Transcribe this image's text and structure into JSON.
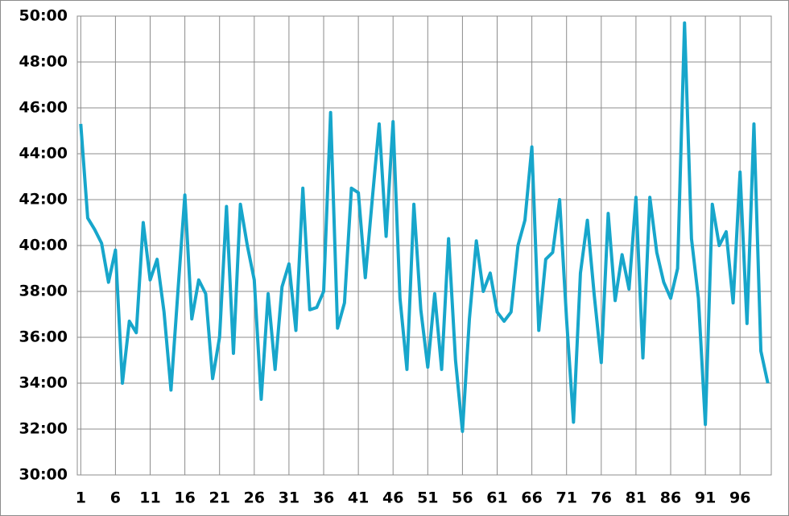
{
  "chart_data": {
    "type": "line",
    "x": [
      1,
      2,
      3,
      4,
      5,
      6,
      7,
      8,
      9,
      10,
      11,
      12,
      13,
      14,
      15,
      16,
      17,
      18,
      19,
      20,
      21,
      22,
      23,
      24,
      25,
      26,
      27,
      28,
      29,
      30,
      31,
      32,
      33,
      34,
      35,
      36,
      37,
      38,
      39,
      40,
      41,
      42,
      43,
      44,
      45,
      46,
      47,
      48,
      49,
      50,
      51,
      52,
      53,
      54,
      55,
      56,
      57,
      58,
      59,
      60,
      61,
      62,
      63,
      64,
      65,
      66,
      67,
      68,
      69,
      70,
      71,
      72,
      73,
      74,
      75,
      76,
      77,
      78,
      79,
      80,
      81,
      82,
      83,
      84,
      85,
      86,
      87,
      88,
      89,
      90,
      91,
      92,
      93,
      94,
      95,
      96,
      97,
      98,
      99,
      100
    ],
    "series": [
      {
        "color": "#17a6cb",
        "values": [
          45.3,
          41.2,
          40.7,
          40.1,
          38.4,
          39.8,
          34.0,
          36.7,
          36.2,
          41.0,
          38.5,
          39.4,
          37.1,
          33.7,
          38.0,
          42.2,
          36.8,
          38.5,
          37.9,
          34.2,
          36.0,
          41.7,
          35.3,
          41.8,
          40.0,
          38.5,
          33.3,
          37.9,
          34.6,
          38.2,
          39.2,
          36.3,
          42.5,
          37.2,
          37.3,
          38.0,
          45.8,
          36.4,
          37.5,
          42.5,
          42.3,
          38.6,
          42.0,
          45.3,
          40.4,
          45.4,
          37.7,
          34.6,
          41.8,
          37.2,
          34.7,
          37.9,
          34.6,
          40.3,
          35.0,
          31.9,
          36.8,
          40.2,
          38.0,
          38.8,
          37.1,
          36.7,
          37.1,
          40.0,
          41.1,
          44.3,
          36.3,
          39.4,
          39.7,
          42.0,
          36.8,
          32.3,
          38.8,
          41.1,
          37.8,
          34.9,
          41.4,
          37.6,
          39.6,
          38.1,
          42.1,
          35.1,
          42.1,
          39.7,
          38.4,
          37.7,
          39.0,
          49.7,
          40.3,
          37.7,
          32.2,
          41.8,
          40.0,
          40.6,
          37.5,
          43.2,
          36.6,
          45.3,
          35.4,
          34.0
        ]
      }
    ],
    "xlim": [
      0.5,
      100.5
    ],
    "xticks": [
      1,
      6,
      11,
      16,
      21,
      26,
      31,
      36,
      41,
      46,
      51,
      56,
      61,
      66,
      71,
      76,
      81,
      86,
      91,
      96
    ],
    "ylim": [
      30,
      50
    ],
    "yticks": [
      {
        "value": 30,
        "label": "30:00"
      },
      {
        "value": 32,
        "label": "32:00"
      },
      {
        "value": 34,
        "label": "34:00"
      },
      {
        "value": 36,
        "label": "36:00"
      },
      {
        "value": 38,
        "label": "38:00"
      },
      {
        "value": 40,
        "label": "40:00"
      },
      {
        "value": 42,
        "label": "42:00"
      },
      {
        "value": 44,
        "label": "44:00"
      },
      {
        "value": 46,
        "label": "46:00"
      },
      {
        "value": 48,
        "label": "48:00"
      },
      {
        "value": 50,
        "label": "50:00"
      }
    ],
    "grid": true
  }
}
